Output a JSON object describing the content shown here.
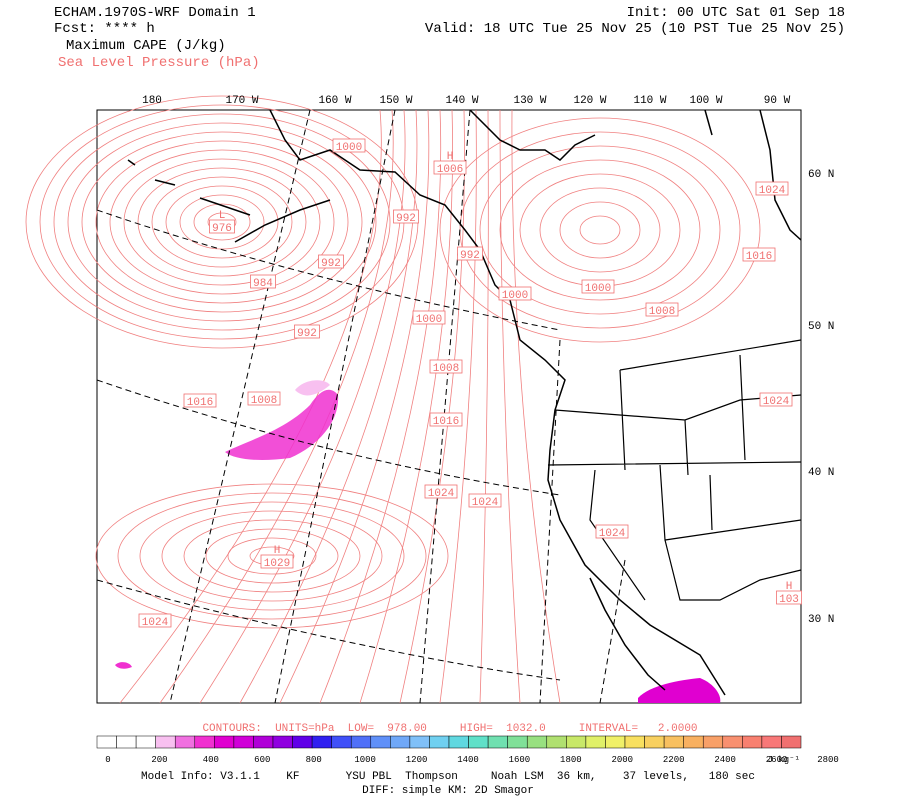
{
  "header": {
    "title": "ECHAM.1970S-WRF Domain 1",
    "forecast": "Fcst: **** h",
    "field": "Maximum CAPE (J/kg)",
    "contour_field": "Sea Level Pressure (hPa)",
    "init": "Init: 00 UTC Sat 01 Sep 18",
    "valid": "Valid: 18 UTC Tue 25 Nov 25 (10 PST Tue 25 Nov 25)"
  },
  "map": {
    "longitude_labels": [
      "180",
      "170 W",
      "160 W",
      "150 W",
      "140 W",
      "130 W",
      "120 W",
      "110 W",
      "100 W",
      "90 W"
    ],
    "latitude_labels": [
      "60 N",
      "50 N",
      "40 N",
      "30 N"
    ],
    "contour_labels": [
      {
        "text": "1000"
      },
      {
        "marker": "H",
        "text": "1006"
      },
      {
        "marker": "L",
        "text": "976"
      },
      {
        "text": "992"
      },
      {
        "text": "992"
      },
      {
        "text": "984"
      },
      {
        "text": "992"
      },
      {
        "text": "1000"
      },
      {
        "text": "1008"
      },
      {
        "text": "1016"
      },
      {
        "text": "1024"
      },
      {
        "text": "992"
      },
      {
        "text": "1000"
      },
      {
        "text": "1000"
      },
      {
        "text": "1008"
      },
      {
        "text": "1016"
      },
      {
        "text": "1008"
      },
      {
        "text": "1016"
      },
      {
        "text": "1024"
      },
      {
        "text": "1024"
      },
      {
        "text": "1024"
      },
      {
        "text": "1024"
      },
      {
        "marker": "H",
        "text": "1029"
      },
      {
        "text": "1024"
      },
      {
        "marker": "H",
        "text": "103"
      }
    ]
  },
  "footer": {
    "contours": "CONTOURS:  UNITS=hPa  LOW=  978.00     HIGH=  1032.0     INTERVAL=   2.0000",
    "colorbar": {
      "colors": [
        "#ffffff",
        "#ffffff",
        "#ffffff",
        "#f8c0f0",
        "#f070e0",
        "#f030d0",
        "#e000d0",
        "#d000d8",
        "#b000d8",
        "#9000e0",
        "#6000e8",
        "#3020f0",
        "#4050f8",
        "#5070f8",
        "#6090f8",
        "#70a8f8",
        "#80c0f8",
        "#70d0f0",
        "#60d8e0",
        "#60e0c8",
        "#70e0b0",
        "#80e098",
        "#98e080",
        "#b0e070",
        "#c8e868",
        "#e0f068",
        "#f0f068",
        "#f8e060",
        "#f8d060",
        "#f8c060",
        "#f8b060",
        "#f8a068",
        "#f89070",
        "#f88070",
        "#f87878",
        "#f07070"
      ],
      "labels": [
        0,
        200,
        400,
        600,
        800,
        1000,
        1200,
        1400,
        1600,
        1800,
        2000,
        2200,
        2400,
        2600,
        2800
      ],
      "units": "J kg⁻¹"
    },
    "model_info": "Model Info: V3.1.1    KF       YSU PBL  Thompson     Noah LSM  36 km,    37 levels,   180 sec",
    "diff": "DIFF: simple KM: 2D Smagor"
  }
}
